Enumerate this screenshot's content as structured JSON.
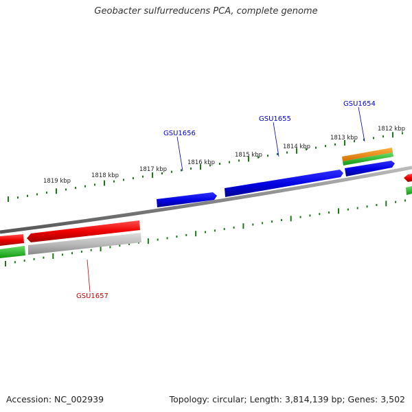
{
  "title": "Geobacter sulfurreducens PCA, complete genome",
  "footer": {
    "accession": "Accession: NC_002939",
    "summary": "Topology: circular; Length: 3,814,139 bp; Genes: 3,502"
  },
  "colors": {
    "backbone": "#888888",
    "cds_forward": "#0000ee",
    "cds_reverse": "#ee0000",
    "gene_forward": "#f08a00",
    "gene_reverse": "#bbbbbb",
    "tick": "#1a7a1a",
    "green_track": "#22bb22",
    "label_forward": "#0000cc",
    "label_reverse": "#cc0000"
  },
  "ruler": {
    "labels": [
      {
        "text": "1812 kbp"
      },
      {
        "text": "1813 kbp"
      },
      {
        "text": "1814 kbp"
      },
      {
        "text": "1815 kbp"
      },
      {
        "text": "1816 kbp"
      },
      {
        "text": "1817 kbp"
      },
      {
        "text": "1818 kbp"
      },
      {
        "text": "1819 kbp"
      }
    ]
  },
  "gene_labels": [
    {
      "text": "GSU1654",
      "strand": "forward"
    },
    {
      "text": "GSU1655",
      "strand": "forward"
    },
    {
      "text": "GSU1656",
      "strand": "forward"
    },
    {
      "text": "GSU1657",
      "strand": "reverse"
    }
  ]
}
